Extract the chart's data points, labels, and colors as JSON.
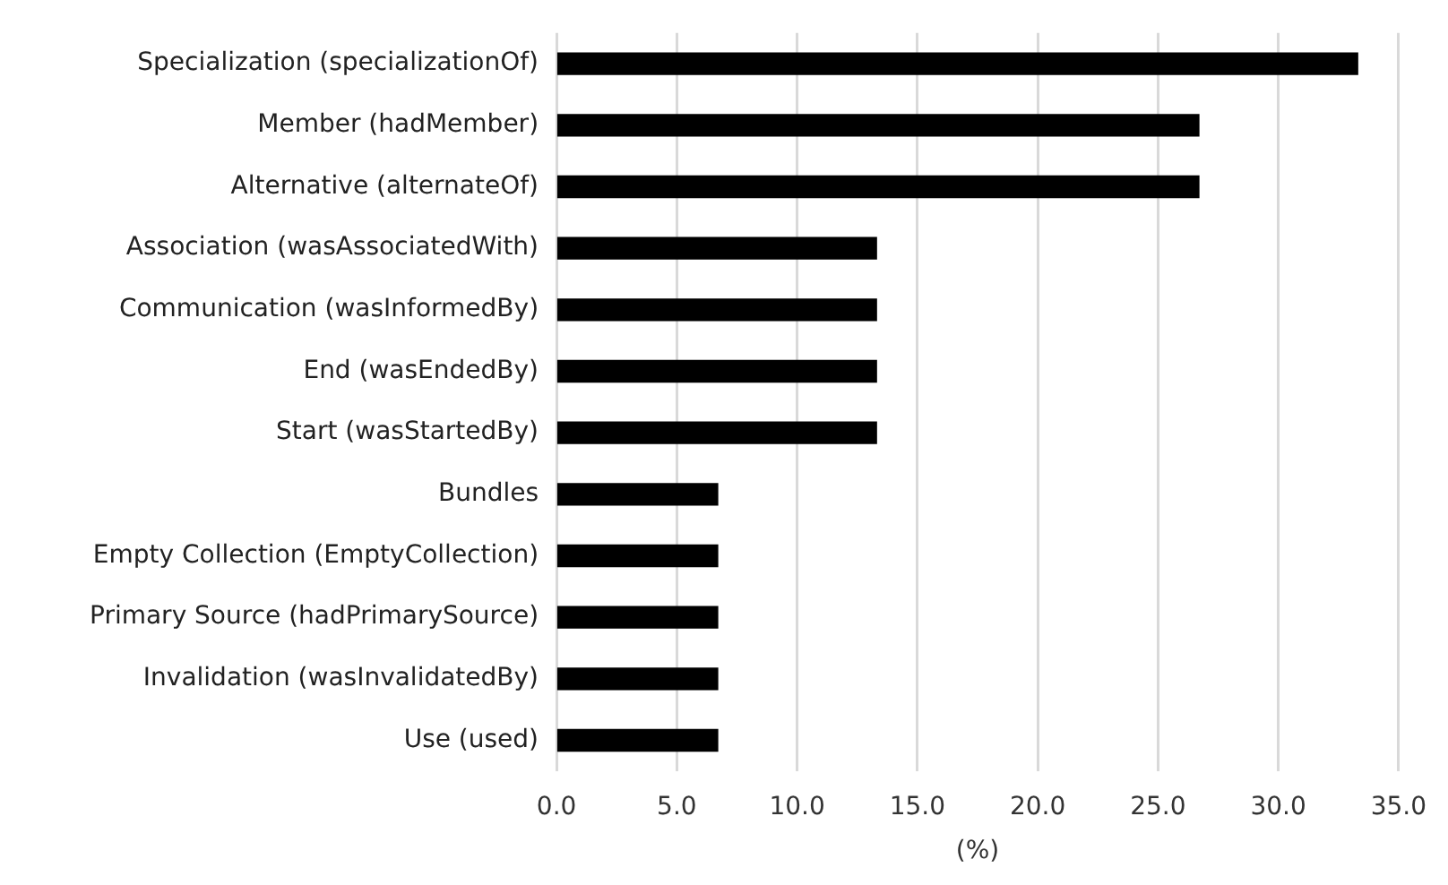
{
  "chart_data": {
    "type": "bar",
    "orientation": "horizontal",
    "xlabel": "(%)",
    "categories": [
      "Specialization (specializationOf)",
      "Member (hadMember)",
      "Alternative (alternateOf)",
      "Association (wasAssociatedWith)",
      "Communication (wasInformedBy)",
      "End (wasEndedBy)",
      "Start (wasStartedBy)",
      "Bundles",
      "Empty Collection (EmptyCollection)",
      "Primary Source (hadPrimarySource)",
      "Invalidation (wasInvalidatedBy)",
      "Use (used)"
    ],
    "values": [
      33.3,
      26.7,
      26.7,
      13.3,
      13.3,
      13.3,
      13.3,
      6.7,
      6.7,
      6.7,
      6.7,
      6.7
    ],
    "color": "#000000",
    "xlim": [
      0,
      35
    ],
    "xticks": [
      {
        "value": 0,
        "label": "0.0"
      },
      {
        "value": 5,
        "label": "5.0"
      },
      {
        "value": 10,
        "label": "10.0"
      },
      {
        "value": 15,
        "label": "15.0"
      },
      {
        "value": 20,
        "label": "20.0"
      },
      {
        "value": 25,
        "label": "25.0"
      },
      {
        "value": 30,
        "label": "30.0"
      },
      {
        "value": 35,
        "label": "35.0"
      }
    ],
    "grid": "x",
    "legend": false
  }
}
